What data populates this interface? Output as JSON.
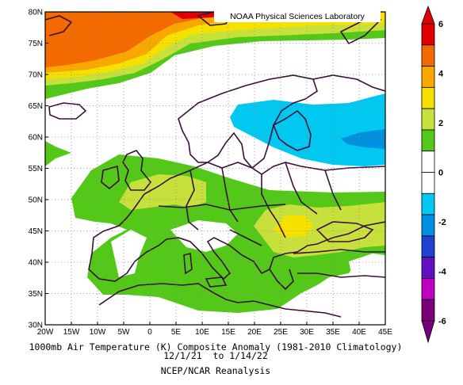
{
  "credit": "NOAA Physical Sciences Laboratory",
  "caption": {
    "line1": "1000mb Air Temperature (K) Composite Anomaly (1981-2010 Climatology)",
    "line2": "12/1/21  to 1/14/22",
    "line3": "NCEP/NCAR Reanalysis"
  },
  "map": {
    "lon_range": [
      -20,
      45
    ],
    "lat_range": [
      30,
      80
    ],
    "lon_ticks": [
      "20W",
      "15W",
      "10W",
      "5W",
      "0",
      "5E",
      "10E",
      "15E",
      "20E",
      "25E",
      "30E",
      "35E",
      "40E",
      "45E"
    ],
    "lat_ticks": [
      "80N",
      "75N",
      "70N",
      "65N",
      "60N",
      "55N",
      "50N",
      "45N",
      "40N",
      "35N",
      "30N"
    ],
    "grid": "dotted"
  },
  "colorbar": {
    "labels": [
      "6",
      "4",
      "2",
      "0",
      "-2",
      "-4",
      "-6"
    ],
    "colors": [
      "#e00000",
      "#f26a00",
      "#f8a800",
      "#f6e000",
      "#c8e03c",
      "#54c818",
      "#ffffff",
      "#ffffff",
      "#00c8f0",
      "#0090e0",
      "#2040d0",
      "#6010c0",
      "#c000c0",
      "#7a007a"
    ]
  }
}
